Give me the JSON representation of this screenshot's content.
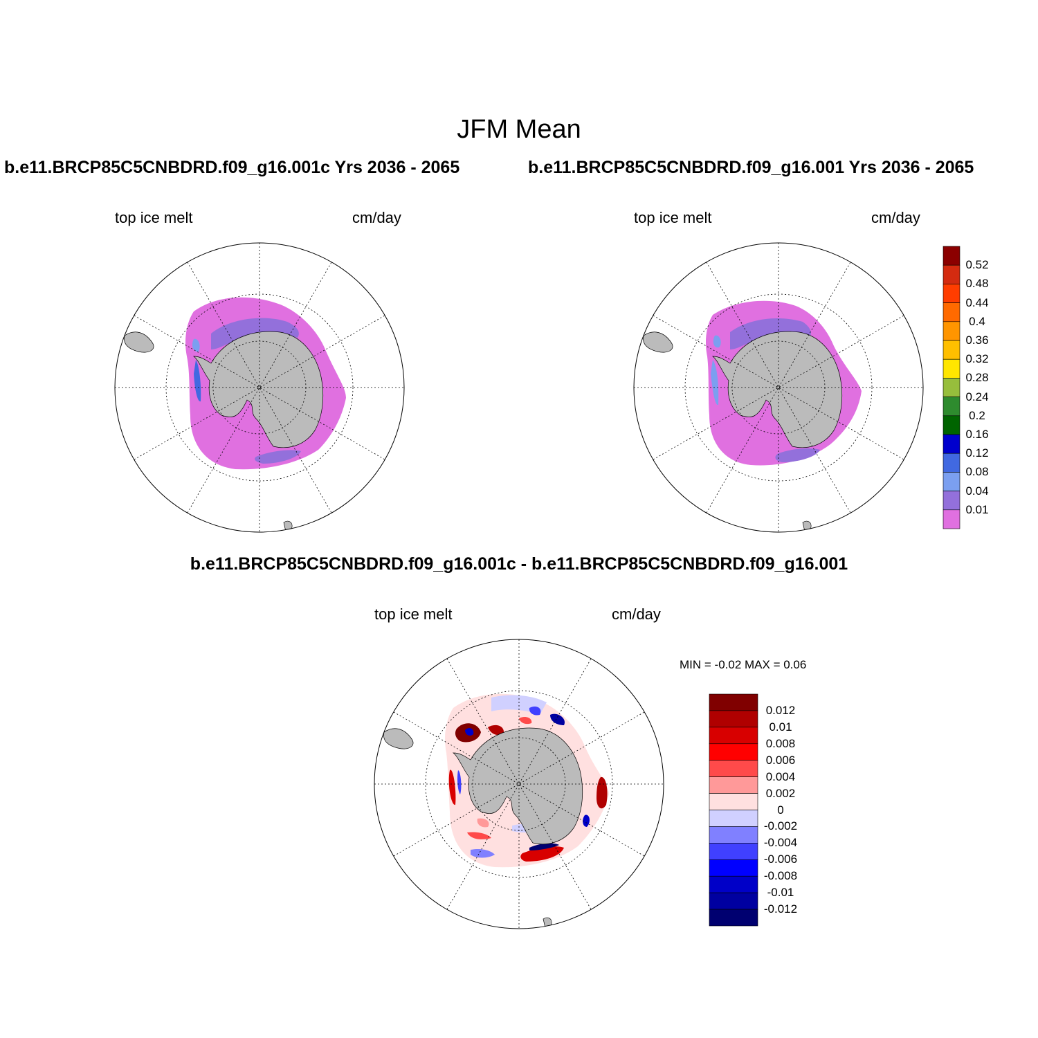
{
  "title": "JFM Mean",
  "panels": [
    {
      "id": "case",
      "title": "b.e11.BRCP85C5CNBDRD.f09_g16.001c  Yrs 2036 - 2065",
      "variable": "top ice melt",
      "units": "cm/day"
    },
    {
      "id": "control",
      "title": "b.e11.BRCP85C5CNBDRD.f09_g16.001  Yrs 2036 - 2065",
      "variable": "top ice melt",
      "units": "cm/day"
    },
    {
      "id": "difference",
      "title": "b.e11.BRCP85C5CNBDRD.f09_g16.001c - b.e11.BRCP85C5CNBDRD.f09_g16.001",
      "variable": "top ice melt",
      "units": "cm/day",
      "min_max": "MIN =  -0.02 MAX =   0.06"
    }
  ],
  "colorbar_main": {
    "labels": [
      "0.52",
      "0.48",
      "0.44",
      "0.4",
      "0.36",
      "0.32",
      "0.28",
      "0.24",
      "0.2",
      "0.16",
      "0.12",
      "0.08",
      "0.04",
      "0.01"
    ],
    "colors": [
      "#8b0000",
      "#d42b10",
      "#ff3d00",
      "#ff6a00",
      "#ff9500",
      "#ffbf00",
      "#ffe600",
      "#97be3c",
      "#2e8b2e",
      "#006400",
      "#0000cd",
      "#4169e1",
      "#7b9ff0",
      "#9370db",
      "#e070e0"
    ]
  },
  "colorbar_diff": {
    "labels": [
      "0.012",
      "0.01",
      "0.008",
      "0.006",
      "0.004",
      "0.002",
      "0",
      "-0.002",
      "-0.004",
      "-0.006",
      "-0.008",
      "-0.01",
      "-0.012"
    ],
    "colors": [
      "#800000",
      "#b00000",
      "#d80000",
      "#ff0000",
      "#ff4a4a",
      "#ff9999",
      "#ffe0e0",
      "#d0d0ff",
      "#8080ff",
      "#4040ff",
      "#0000ff",
      "#0000c8",
      "#0000a0",
      "#000070"
    ]
  },
  "map_colors": {
    "land": "#bbbbbb",
    "ice_low": "#e070e0",
    "ice_mid": "#9370db",
    "ice_hi": "#7b9ff0",
    "ice_hi2": "#4169e1"
  }
}
